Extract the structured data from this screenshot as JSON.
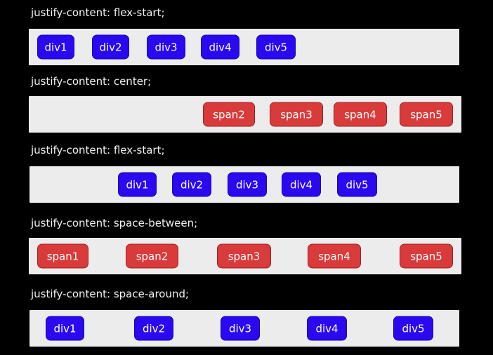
{
  "colors": {
    "background": "#000000",
    "row_background": "#ececec",
    "div_box": "#2a08f0",
    "span_box": "#d93b3b"
  },
  "sections": [
    {
      "label": "justify-content: flex-start;",
      "items": [
        "div1",
        "div2",
        "div3",
        "div4",
        "div5"
      ]
    },
    {
      "label": "justify-content: center;",
      "items": [
        "span2",
        "span3",
        "span4",
        "span5"
      ]
    },
    {
      "label": "justify-content: flex-start;",
      "items": [
        "div1",
        "div2",
        "div3",
        "div4",
        "div5"
      ]
    },
    {
      "label": "justify-content: space-between;",
      "items": [
        "span1",
        "span2",
        "span3",
        "span4",
        "span5"
      ]
    },
    {
      "label": "justify-content: space-around;",
      "items": [
        "div1",
        "div2",
        "div3",
        "div4",
        "div5"
      ]
    }
  ]
}
